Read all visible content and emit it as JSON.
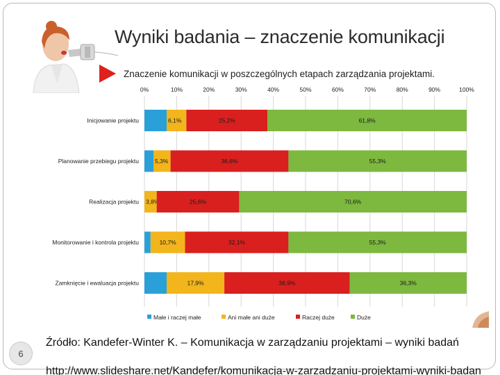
{
  "slide": {
    "title": "Wyniki badania – znaczenie komunikacji",
    "page_number": "6",
    "source_text": "Źródło: Kandefer-Winter K. – Komunikacja w zarządzaniu projektami – wyniki badań",
    "source_url": "http://www.slideshare.net/Kandefer/komunikacja-w-zarzadzaniu-projektami-wyniki-badan"
  },
  "colors": {
    "accent_red": "#e0201d",
    "series": [
      "#2aa0d8",
      "#f2b51c",
      "#d9201f",
      "#7db83f"
    ]
  },
  "chart_data": {
    "type": "bar",
    "orientation": "horizontal",
    "stacked": true,
    "title": "Znaczenie komunikacji w poszczególnych etapach zarządzania projektami.",
    "xlim": [
      0,
      100
    ],
    "x_ticks": [
      "0%",
      "10%",
      "20%",
      "30%",
      "40%",
      "50%",
      "60%",
      "70%",
      "80%",
      "90%",
      "100%"
    ],
    "categories": [
      "Inicjowanie projektu",
      "Planowanie przebiegu projektu",
      "Realizacja projektu",
      "Monitorowanie i kontrola projektu",
      "Zamknięcie i ewaluacja projektu"
    ],
    "series": [
      {
        "name": "Małe i raczej małe",
        "values": [
          6.9,
          2.8,
          0.0,
          1.9,
          6.9
        ],
        "labels": [
          "",
          "",
          "",
          "",
          ""
        ]
      },
      {
        "name": "Ani małe ani duże",
        "values": [
          6.1,
          5.3,
          3.8,
          10.7,
          17.9
        ],
        "labels": [
          "6,1%",
          "5,3%",
          "3,8%",
          "10,7%",
          "17,9%"
        ]
      },
      {
        "name": "Raczej duże",
        "values": [
          25.2,
          36.6,
          25.6,
          32.1,
          38.9
        ],
        "labels": [
          "25,2%",
          "36,6%",
          "25,6%",
          "32,1%",
          "38,9%"
        ]
      },
      {
        "name": "Duże",
        "values": [
          61.8,
          55.3,
          70.6,
          55.3,
          36.3
        ],
        "labels": [
          "61,8%",
          "55,3%",
          "70,6%",
          "55,3%",
          "36,3%"
        ]
      }
    ],
    "grid": true,
    "legend_position": "bottom"
  }
}
